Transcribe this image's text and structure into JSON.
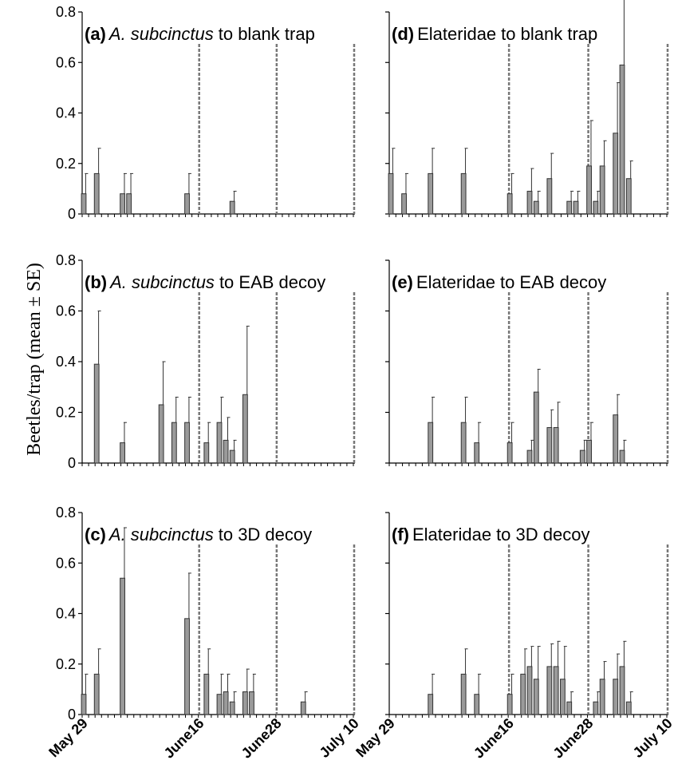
{
  "ylabel": "Beetles/trap (mean ± SE)",
  "date_ticks": [
    "May 29",
    "June16",
    "June28",
    "July 10"
  ],
  "chart_data": [
    {
      "type": "bar",
      "panel": "a",
      "title": {
        "prefix": "(a)",
        "species": "A. subcinctus",
        "suffix": "to blank trap",
        "italic_species": true
      },
      "ylim": [
        0,
        0.8
      ],
      "yticks": [
        "0",
        "0.2",
        "0.4",
        "0.6",
        "0.8"
      ],
      "x_unit": "day offset from May 29",
      "reference_lines": [
        "June16",
        "June28",
        "July 10"
      ],
      "values": [
        {
          "x": 0,
          "y": 0.08,
          "se": 0.08
        },
        {
          "x": 2,
          "y": 0.16,
          "se": 0.1
        },
        {
          "x": 6,
          "y": 0.08,
          "se": 0.08
        },
        {
          "x": 7,
          "y": 0.08,
          "se": 0.08
        },
        {
          "x": 16,
          "y": 0.08,
          "se": 0.08
        },
        {
          "x": 23,
          "y": 0.05,
          "se": 0.04
        }
      ]
    },
    {
      "type": "bar",
      "panel": "b",
      "title": {
        "prefix": "(b)",
        "species": "A. subcinctus",
        "suffix": "to EAB decoy",
        "italic_species": true
      },
      "ylim": [
        0,
        0.8
      ],
      "yticks": [
        "0",
        "0.2",
        "0.4",
        "0.6",
        "0.8"
      ],
      "reference_lines": [
        "June16",
        "June28",
        "July 10"
      ],
      "values": [
        {
          "x": 2,
          "y": 0.39,
          "se": 0.21
        },
        {
          "x": 6,
          "y": 0.08,
          "se": 0.08
        },
        {
          "x": 12,
          "y": 0.23,
          "se": 0.17
        },
        {
          "x": 14,
          "y": 0.16,
          "se": 0.1
        },
        {
          "x": 16,
          "y": 0.16,
          "se": 0.1
        },
        {
          "x": 19,
          "y": 0.08,
          "se": 0.08
        },
        {
          "x": 21,
          "y": 0.16,
          "se": 0.1
        },
        {
          "x": 22,
          "y": 0.09,
          "se": 0.09
        },
        {
          "x": 23,
          "y": 0.05,
          "se": 0.04
        },
        {
          "x": 25,
          "y": 0.27,
          "se": 0.27
        }
      ]
    },
    {
      "type": "bar",
      "panel": "c",
      "title": {
        "prefix": "(c)",
        "species": "A. subcinctus",
        "suffix": "to 3D decoy",
        "italic_species": true
      },
      "ylim": [
        0,
        0.8
      ],
      "yticks": [
        "0",
        "0.2",
        "0.4",
        "0.6",
        "0.8"
      ],
      "reference_lines": [
        "June16",
        "June28",
        "July 10"
      ],
      "values": [
        {
          "x": 0,
          "y": 0.08,
          "se": 0.08
        },
        {
          "x": 2,
          "y": 0.16,
          "se": 0.1
        },
        {
          "x": 6,
          "y": 0.54,
          "se": 0.2
        },
        {
          "x": 16,
          "y": 0.38,
          "se": 0.18
        },
        {
          "x": 19,
          "y": 0.16,
          "se": 0.1
        },
        {
          "x": 21,
          "y": 0.08,
          "se": 0.08
        },
        {
          "x": 22,
          "y": 0.09,
          "se": 0.07
        },
        {
          "x": 23,
          "y": 0.05,
          "se": 0.04
        },
        {
          "x": 25,
          "y": 0.09,
          "se": 0.09
        },
        {
          "x": 26,
          "y": 0.09,
          "se": 0.07
        },
        {
          "x": 34,
          "y": 0.05,
          "se": 0.04
        }
      ]
    },
    {
      "type": "bar",
      "panel": "d",
      "title": {
        "prefix": "(d)",
        "species": "Elateridae",
        "suffix": "to blank trap",
        "italic_species": false
      },
      "ylim": [
        0,
        0.8
      ],
      "yticks": [
        "0",
        "0.2",
        "0.4",
        "0.6",
        "0.8"
      ],
      "reference_lines": [
        "June16",
        "June28",
        "July 10"
      ],
      "values": [
        {
          "x": 0,
          "y": 0.16,
          "se": 0.1
        },
        {
          "x": 2,
          "y": 0.08,
          "se": 0.08
        },
        {
          "x": 6,
          "y": 0.16,
          "se": 0.1
        },
        {
          "x": 11,
          "y": 0.16,
          "se": 0.1
        },
        {
          "x": 18,
          "y": 0.08,
          "se": 0.08
        },
        {
          "x": 21,
          "y": 0.09,
          "se": 0.09
        },
        {
          "x": 22,
          "y": 0.05,
          "se": 0.04
        },
        {
          "x": 24,
          "y": 0.14,
          "se": 0.1
        },
        {
          "x": 27,
          "y": 0.05,
          "se": 0.04
        },
        {
          "x": 28,
          "y": 0.05,
          "se": 0.04
        },
        {
          "x": 30,
          "y": 0.19,
          "se": 0.18
        },
        {
          "x": 31,
          "y": 0.05,
          "se": 0.04
        },
        {
          "x": 32,
          "y": 0.19,
          "se": 0.1
        },
        {
          "x": 34,
          "y": 0.32,
          "se": 0.2
        },
        {
          "x": 35,
          "y": 0.59,
          "se": 0.3
        },
        {
          "x": 36,
          "y": 0.14,
          "se": 0.07
        }
      ]
    },
    {
      "type": "bar",
      "panel": "e",
      "title": {
        "prefix": "(e)",
        "species": "Elateridae",
        "suffix": "to EAB decoy",
        "italic_species": false
      },
      "ylim": [
        0,
        0.8
      ],
      "yticks": [
        "0",
        "0.2",
        "0.4",
        "0.6",
        "0.8"
      ],
      "reference_lines": [
        "June16",
        "June28",
        "July 10"
      ],
      "values": [
        {
          "x": 6,
          "y": 0.16,
          "se": 0.1
        },
        {
          "x": 11,
          "y": 0.16,
          "se": 0.1
        },
        {
          "x": 13,
          "y": 0.08,
          "se": 0.08
        },
        {
          "x": 18,
          "y": 0.08,
          "se": 0.08
        },
        {
          "x": 21,
          "y": 0.05,
          "se": 0.04
        },
        {
          "x": 22,
          "y": 0.28,
          "se": 0.09
        },
        {
          "x": 24,
          "y": 0.14,
          "se": 0.07
        },
        {
          "x": 25,
          "y": 0.14,
          "se": 0.1
        },
        {
          "x": 29,
          "y": 0.05,
          "se": 0.04
        },
        {
          "x": 30,
          "y": 0.09,
          "se": 0.07
        },
        {
          "x": 34,
          "y": 0.19,
          "se": 0.08
        },
        {
          "x": 35,
          "y": 0.05,
          "se": 0.04
        }
      ]
    },
    {
      "type": "bar",
      "panel": "f",
      "title": {
        "prefix": "(f)",
        "species": "Elateridae",
        "suffix": "to  3D decoy",
        "italic_species": false
      },
      "ylim": [
        0,
        0.8
      ],
      "yticks": [
        "0",
        "0.2",
        "0.4",
        "0.6",
        "0.8"
      ],
      "reference_lines": [
        "June16",
        "June28",
        "July 10"
      ],
      "values": [
        {
          "x": 6,
          "y": 0.08,
          "se": 0.08
        },
        {
          "x": 11,
          "y": 0.16,
          "se": 0.1
        },
        {
          "x": 13,
          "y": 0.08,
          "se": 0.08
        },
        {
          "x": 18,
          "y": 0.08,
          "se": 0.08
        },
        {
          "x": 20,
          "y": 0.16,
          "se": 0.1
        },
        {
          "x": 21,
          "y": 0.19,
          "se": 0.08
        },
        {
          "x": 22,
          "y": 0.14,
          "se": 0.13
        },
        {
          "x": 24,
          "y": 0.19,
          "se": 0.09
        },
        {
          "x": 25,
          "y": 0.19,
          "se": 0.1
        },
        {
          "x": 26,
          "y": 0.14,
          "se": 0.13
        },
        {
          "x": 27,
          "y": 0.05,
          "se": 0.04
        },
        {
          "x": 31,
          "y": 0.05,
          "se": 0.04
        },
        {
          "x": 32,
          "y": 0.14,
          "se": 0.07
        },
        {
          "x": 34,
          "y": 0.14,
          "se": 0.1
        },
        {
          "x": 35,
          "y": 0.19,
          "se": 0.1
        },
        {
          "x": 36,
          "y": 0.05,
          "se": 0.04
        }
      ]
    }
  ]
}
